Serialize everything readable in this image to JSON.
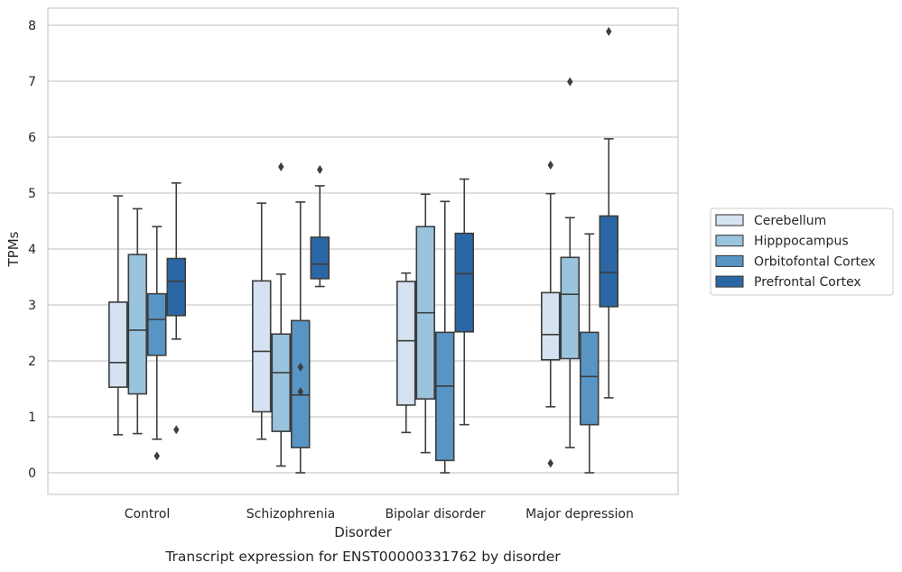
{
  "chart_data": {
    "type": "box",
    "title": "",
    "caption": "Transcript expression for ENST00000331762 by disorder",
    "xlabel": "Disorder",
    "ylabel": "TPMs",
    "ylim": [
      -0.38,
      8.3
    ],
    "yticks": [
      0,
      1,
      2,
      3,
      4,
      5,
      6,
      7,
      8
    ],
    "grid": "horizontal",
    "legend_placement": "right-center",
    "categories": [
      "Control",
      "Schizophrenia",
      "Bipolar disorder",
      "Major depression"
    ],
    "series": [
      {
        "name": "Cerebellum",
        "color": "#d4e2f1",
        "boxes": [
          {
            "whisker_low": 0.68,
            "q1": 1.53,
            "median": 1.97,
            "q3": 3.05,
            "whisker_high": 4.95,
            "outliers": []
          },
          {
            "whisker_low": 0.6,
            "q1": 1.09,
            "median": 2.17,
            "q3": 3.43,
            "whisker_high": 4.82,
            "outliers": []
          },
          {
            "whisker_low": 0.72,
            "q1": 1.21,
            "median": 2.36,
            "q3": 3.42,
            "whisker_high": 3.57,
            "outliers": []
          },
          {
            "whisker_low": 1.18,
            "q1": 2.02,
            "median": 2.47,
            "q3": 3.22,
            "whisker_high": 4.99,
            "outliers": [
              5.5,
              0.17
            ]
          }
        ]
      },
      {
        "name": "Hipppocampus",
        "color": "#9ac4de",
        "boxes": [
          {
            "whisker_low": 0.7,
            "q1": 1.41,
            "median": 2.55,
            "q3": 3.9,
            "whisker_high": 4.72,
            "outliers": []
          },
          {
            "whisker_low": 0.12,
            "q1": 0.74,
            "median": 1.79,
            "q3": 2.48,
            "whisker_high": 3.55,
            "outliers": [
              5.47
            ]
          },
          {
            "whisker_low": 0.36,
            "q1": 1.32,
            "median": 2.86,
            "q3": 4.4,
            "whisker_high": 4.98,
            "outliers": []
          },
          {
            "whisker_low": 0.45,
            "q1": 2.04,
            "median": 3.19,
            "q3": 3.85,
            "whisker_high": 4.56,
            "outliers": [
              6.99
            ]
          }
        ]
      },
      {
        "name": "Orbitofontal Cortex",
        "color": "#5895c4",
        "boxes": [
          {
            "whisker_low": 0.6,
            "q1": 2.1,
            "median": 2.74,
            "q3": 3.2,
            "whisker_high": 4.4,
            "outliers": [
              0.3
            ]
          },
          {
            "whisker_low": 0.0,
            "q1": 0.45,
            "median": 1.39,
            "q3": 2.72,
            "whisker_high": 4.84,
            "outliers": [
              1.89,
              1.45
            ]
          },
          {
            "whisker_low": 0.0,
            "q1": 0.22,
            "median": 1.55,
            "q3": 2.51,
            "whisker_high": 4.85,
            "outliers": []
          },
          {
            "whisker_low": 0.0,
            "q1": 0.86,
            "median": 1.72,
            "q3": 2.51,
            "whisker_high": 4.27,
            "outliers": []
          }
        ]
      },
      {
        "name": "Prefrontal Cortex",
        "color": "#2a67a4",
        "boxes": [
          {
            "whisker_low": 2.39,
            "q1": 2.81,
            "median": 3.42,
            "q3": 3.83,
            "whisker_high": 5.18,
            "outliers": [
              0.77
            ]
          },
          {
            "whisker_low": 3.33,
            "q1": 3.47,
            "median": 3.73,
            "q3": 4.21,
            "whisker_high": 5.13,
            "outliers": [
              5.42
            ]
          },
          {
            "whisker_low": 0.86,
            "q1": 2.52,
            "median": 3.56,
            "q3": 4.28,
            "whisker_high": 5.25,
            "outliers": []
          },
          {
            "whisker_low": 1.34,
            "q1": 2.97,
            "median": 3.58,
            "q3": 4.59,
            "whisker_high": 5.97,
            "outliers": [
              7.89
            ]
          }
        ]
      }
    ]
  }
}
